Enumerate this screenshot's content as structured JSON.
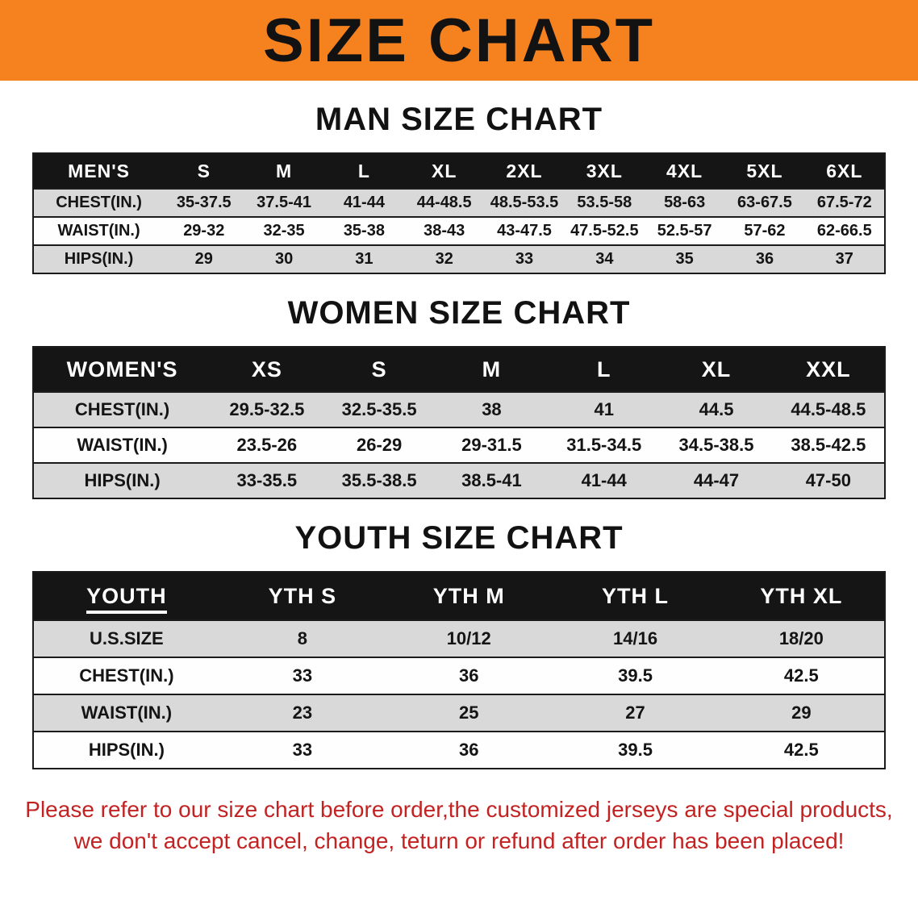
{
  "banner": {
    "title": "SIZE CHART"
  },
  "chart_data": [
    {
      "type": "table",
      "title": "MAN SIZE CHART",
      "columns": [
        "MEN'S",
        "S",
        "M",
        "L",
        "XL",
        "2XL",
        "3XL",
        "4XL",
        "5XL",
        "6XL"
      ],
      "rows": [
        [
          "CHEST(IN.)",
          "35-37.5",
          "37.5-41",
          "41-44",
          "44-48.5",
          "48.5-53.5",
          "53.5-58",
          "58-63",
          "63-67.5",
          "67.5-72"
        ],
        [
          "WAIST(IN.)",
          "29-32",
          "32-35",
          "35-38",
          "38-43",
          "43-47.5",
          "47.5-52.5",
          "52.5-57",
          "57-62",
          "62-66.5"
        ],
        [
          "HIPS(IN.)",
          "29",
          "30",
          "31",
          "32",
          "33",
          "34",
          "35",
          "36",
          "37"
        ]
      ]
    },
    {
      "type": "table",
      "title": "WOMEN SIZE CHART",
      "columns": [
        "WOMEN'S",
        "XS",
        "S",
        "M",
        "L",
        "XL",
        "XXL"
      ],
      "rows": [
        [
          "CHEST(IN.)",
          "29.5-32.5",
          "32.5-35.5",
          "38",
          "41",
          "44.5",
          "44.5-48.5"
        ],
        [
          "WAIST(IN.)",
          "23.5-26",
          "26-29",
          "29-31.5",
          "31.5-34.5",
          "34.5-38.5",
          "38.5-42.5"
        ],
        [
          "HIPS(IN.)",
          "33-35.5",
          "35.5-38.5",
          "38.5-41",
          "41-44",
          "44-47",
          "47-50"
        ]
      ]
    },
    {
      "type": "table",
      "title": "YOUTH SIZE CHART",
      "columns": [
        "YOUTH",
        "YTH S",
        "YTH M",
        "YTH L",
        "YTH XL"
      ],
      "rows": [
        [
          "U.S.SIZE",
          "8",
          "10/12",
          "14/16",
          "18/20"
        ],
        [
          "CHEST(IN.)",
          "33",
          "36",
          "39.5",
          "42.5"
        ],
        [
          "WAIST(IN.)",
          "23",
          "25",
          "27",
          "29"
        ],
        [
          "HIPS(IN.)",
          "33",
          "36",
          "39.5",
          "42.5"
        ]
      ]
    }
  ],
  "footer": {
    "line1": "Please refer to our size chart before order,the customized jerseys are special products,",
    "line2": "we don't accept cancel, change, teturn or refund after order has been placed!"
  },
  "colors": {
    "banner_orange": "#f5821f",
    "header_black": "#151515",
    "row_gray": "#d9d9d9",
    "disclaimer_red": "#c32222"
  }
}
